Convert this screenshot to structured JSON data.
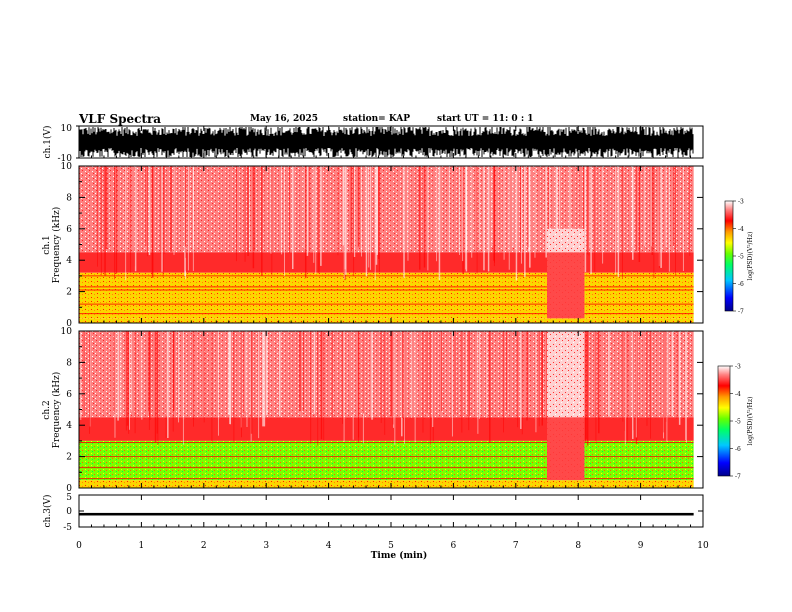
{
  "header": {
    "title": "VLF Spectra",
    "date": "May 16, 2025",
    "station": "station= KAP",
    "start": "start  UT  =   11: 0  : 1"
  },
  "colors": {
    "scale": [
      "#00008b",
      "#0000ff",
      "#00c8ff",
      "#00ff66",
      "#66ff00",
      "#ffff00",
      "#ff9900",
      "#ff0000",
      "#ff8080",
      "#ffffff"
    ]
  },
  "chart_data": [
    {
      "id": "ch1_waveform",
      "type": "line",
      "ylabel": "ch.1(V)",
      "ylim": [
        -10,
        10
      ],
      "yticks": [
        "10",
        "-10"
      ],
      "xlim": [
        0,
        10
      ],
      "description_values": {
        "amplitude_envelope_V": [
          -10,
          10
        ],
        "data_end_min": 9.85
      }
    },
    {
      "id": "ch1_spectrogram",
      "type": "heatmap",
      "ylabel_line1": "ch.1",
      "ylabel_line2": "Frequency (kHz)",
      "ylim": [
        0,
        10
      ],
      "yticks": [
        "0",
        "2",
        "4",
        "6",
        "8",
        "10"
      ],
      "xlim": [
        0,
        10
      ],
      "colorbar": {
        "label": "log(PSD)(V²/Hz)",
        "range": [
          -7,
          -3
        ],
        "ticks": [
          "-3",
          "-4",
          "-5",
          "-6",
          "-7"
        ]
      },
      "bands_kHz": {
        "yellow_band": [
          0.3,
          3.2
        ],
        "red_below": 4.5
      },
      "quiet_interval_min": [
        7.5,
        8.1
      ]
    },
    {
      "id": "ch2_spectrogram",
      "type": "heatmap",
      "ylabel_line1": "ch.2",
      "ylabel_line2": "Frequency (kHz)",
      "ylim": [
        0,
        10
      ],
      "yticks": [
        "0",
        "2",
        "4",
        "6",
        "8",
        "10"
      ],
      "xlim": [
        0,
        10
      ],
      "colorbar": {
        "label": "log(PSD)(V²/Hz)",
        "range": [
          -7,
          -3
        ],
        "ticks": [
          "-3",
          "-4",
          "-5",
          "-6",
          "-7"
        ]
      },
      "bands_kHz": {
        "green_band": [
          0.5,
          3.0
        ],
        "red_below": 4.5
      },
      "quiet_interval_min": [
        7.5,
        8.1
      ]
    },
    {
      "id": "ch3_waveform",
      "type": "line",
      "ylabel": "ch.3(V)",
      "ylim": [
        -5,
        5
      ],
      "yticks": [
        "5",
        "0",
        "-5"
      ],
      "xlim": [
        0,
        10
      ],
      "description_values": {
        "level_V": -1.0,
        "band_V": [
          -1.4,
          -0.6
        ]
      }
    }
  ],
  "xaxis": {
    "label": "Time (min)",
    "ticks": [
      "0",
      "1",
      "2",
      "3",
      "4",
      "5",
      "6",
      "7",
      "8",
      "9",
      "10"
    ],
    "range": [
      0,
      10
    ]
  }
}
